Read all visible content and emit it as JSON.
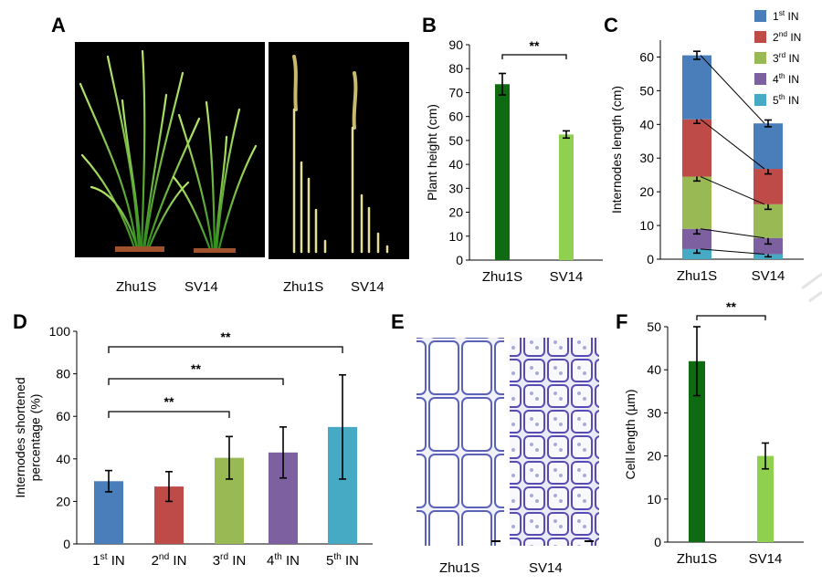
{
  "panels": {
    "A": {
      "label": "A",
      "photo_left": [
        "Zhu1S",
        "SV14"
      ],
      "photo_right": [
        "Zhu1S",
        "SV14"
      ]
    },
    "E": {
      "label": "E",
      "labels": [
        "Zhu1S",
        "SV14"
      ]
    }
  },
  "colors": {
    "dark_green": "#0e6b12",
    "light_green": "#8fd14f",
    "in1": "#4a7ebb",
    "in2": "#be4b48",
    "in3": "#98b954",
    "in4": "#7d60a0",
    "in5": "#46aac5"
  },
  "chart_data": [
    {
      "panel": "B",
      "type": "bar",
      "categories": [
        "Zhu1S",
        "SV14"
      ],
      "values": [
        73.5,
        52.5
      ],
      "errors": [
        4.5,
        1.5
      ],
      "ylabel": "Plant height (cm)",
      "ylim": [
        0,
        90
      ],
      "yticks": [
        "0",
        "10",
        "20",
        "30",
        "40",
        "50",
        "60",
        "70",
        "80",
        "90"
      ],
      "significance": [
        {
          "pair": [
            0,
            1
          ],
          "label": "**"
        }
      ]
    },
    {
      "panel": "C",
      "type": "bar",
      "stacked": true,
      "categories": [
        "Zhu1S",
        "SV14"
      ],
      "series": [
        {
          "name": "5th IN",
          "sup": "th",
          "values": [
            3,
            1.5
          ],
          "errors": [
            1.2,
            0.8
          ]
        },
        {
          "name": "4th IN",
          "sup": "th",
          "values": [
            6,
            4.8
          ],
          "errors": [
            1.5,
            1.8
          ]
        },
        {
          "name": "3rd IN",
          "sup": "rd",
          "values": [
            15.5,
            10
          ],
          "errors": [
            1.3,
            1.5
          ]
        },
        {
          "name": "2nd IN",
          "sup": "nd",
          "values": [
            17,
            10.5
          ],
          "errors": [
            1.2,
            1.5
          ]
        },
        {
          "name": "1st IN",
          "sup": "st",
          "values": [
            19,
            13.5
          ],
          "errors": [
            1.2,
            1
          ]
        }
      ],
      "ylabel": "Internodes length (cm)",
      "ylim": [
        0,
        65
      ],
      "yticks": [
        "0",
        "10",
        "20",
        "30",
        "40",
        "50",
        "60"
      ],
      "legend_position": "top-right"
    },
    {
      "panel": "D",
      "type": "bar",
      "categories": [
        "1st IN",
        "2nd IN",
        "3rd IN",
        "4th IN",
        "5th IN"
      ],
      "values": [
        29.5,
        27,
        40.5,
        43,
        55
      ],
      "errors": [
        5,
        7,
        10,
        12,
        24.5
      ],
      "ylabel": "Internodes shortened percentage (%)",
      "ylim": [
        0,
        100
      ],
      "yticks": [
        "0",
        "20",
        "40",
        "60",
        "80",
        "100"
      ],
      "significance": [
        {
          "pair": [
            0,
            2
          ],
          "label": "**"
        },
        {
          "pair": [
            0,
            3
          ],
          "label": "**"
        },
        {
          "pair": [
            0,
            4
          ],
          "label": "**"
        }
      ]
    },
    {
      "panel": "F",
      "type": "bar",
      "categories": [
        "Zhu1S",
        "SV14"
      ],
      "values": [
        42,
        20
      ],
      "errors": [
        8,
        3
      ],
      "ylabel": "Cell length (µm)",
      "ylim": [
        0,
        50
      ],
      "yticks": [
        "0",
        "10",
        "20",
        "30",
        "40",
        "50"
      ],
      "significance": [
        {
          "pair": [
            0,
            1
          ],
          "label": "**"
        }
      ]
    }
  ]
}
